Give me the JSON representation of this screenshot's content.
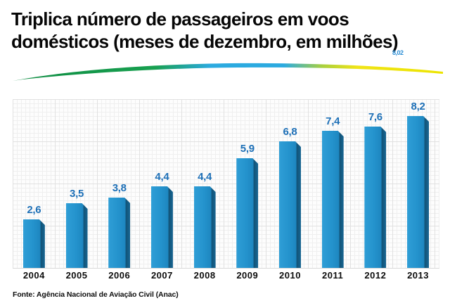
{
  "title": {
    "line1": "Triplica número de passageiros em voos",
    "line2": "domésticos (meses de dezembro, em milhões)",
    "artifact": "8,02"
  },
  "chart_data": {
    "type": "bar",
    "title": "Triplica número de passageiros em voos domésticos (meses de dezembro, em milhões)",
    "categories": [
      "2004",
      "2005",
      "2006",
      "2007",
      "2008",
      "2009",
      "2010",
      "2011",
      "2012",
      "2013"
    ],
    "values": [
      2.6,
      3.5,
      3.8,
      4.4,
      4.4,
      5.9,
      6.8,
      7.4,
      7.6,
      8.2
    ],
    "value_labels": [
      "2,6",
      "3,5",
      "3,8",
      "4,4",
      "4,4",
      "5,9",
      "6,8",
      "7,4",
      "7,6",
      "8,2"
    ],
    "xlabel": "",
    "ylabel": "",
    "ylim": [
      0,
      9
    ],
    "grid": true,
    "legend": false,
    "bar_color": "#2191cb",
    "bar_side_color": "#14567e",
    "value_label_color": "#1e70b7"
  },
  "swoosh_colors": {
    "green": "#149a4c",
    "blue": "#2baae0",
    "yellow": "#f0e416"
  },
  "source": "Fonte: Agência Nacional de Aviação Civil (Anac)"
}
